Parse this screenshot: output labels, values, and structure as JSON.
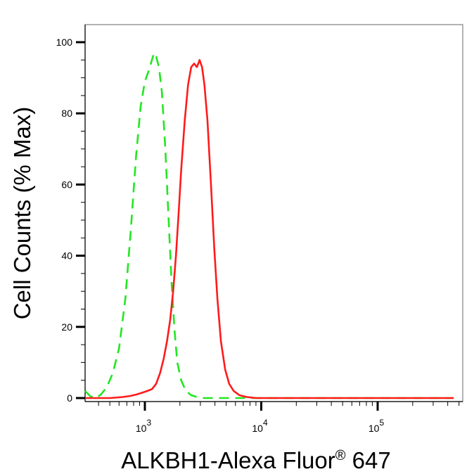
{
  "chart_data": {
    "type": "line",
    "title": "",
    "xlabel": "ALKBH1-Alexa Fluor",
    "xlabel_superscript": "®",
    "xlabel_suffix": " 647",
    "ylabel": "Cell Counts (% Max)",
    "x_scale": "log",
    "xlim": [
      300,
      450000
    ],
    "ylim": [
      0,
      105
    ],
    "y_ticks": [
      0,
      20,
      40,
      60,
      80,
      100
    ],
    "y_tick_labels": [
      "0",
      "20",
      "40",
      "60",
      "80",
      "100"
    ],
    "x_ticks": [
      1000,
      10000,
      100000
    ],
    "x_tick_base": "10",
    "x_tick_exponents": [
      "3",
      "4",
      "5"
    ],
    "grid": false,
    "colors": {
      "control": "#22e622",
      "sample": "#ff1a1a",
      "frame": "#808080"
    },
    "series": [
      {
        "style": "dashed",
        "color": "#22e622",
        "x": [
          300,
          340,
          380,
          420,
          470,
          530,
          600,
          680,
          760,
          840,
          920,
          1000,
          1080,
          1150,
          1200,
          1250,
          1320,
          1400,
          1500,
          1600,
          1700,
          1800,
          1900,
          2050,
          2250,
          2500,
          2800,
          3200,
          4000,
          6000,
          10000,
          30000,
          100000,
          450000
        ],
        "y": [
          2,
          0.5,
          0,
          1,
          3,
          7,
          14,
          28,
          48,
          68,
          82,
          89,
          92,
          95,
          97,
          96,
          93,
          86,
          70,
          50,
          32,
          19,
          10,
          5,
          2,
          0.8,
          0.3,
          0,
          0,
          0,
          0,
          0,
          0,
          0
        ]
      },
      {
        "style": "solid",
        "color": "#ff1a1a",
        "x": [
          300,
          500,
          650,
          750,
          850,
          950,
          1050,
          1150,
          1250,
          1350,
          1450,
          1550,
          1650,
          1750,
          1850,
          1950,
          2050,
          2200,
          2350,
          2500,
          2650,
          2800,
          2950,
          3100,
          3250,
          3450,
          3700,
          3950,
          4200,
          4500,
          4900,
          5300,
          5800,
          6500,
          7500,
          9000,
          15000,
          50000,
          450000
        ],
        "y": [
          0,
          0,
          0.3,
          0.6,
          1,
          1.5,
          2,
          2.5,
          4,
          7,
          11,
          16,
          22,
          30,
          40,
          52,
          64,
          78,
          88,
          93,
          94,
          93,
          95,
          93,
          88,
          78,
          60,
          42,
          28,
          16,
          8,
          4,
          2,
          0.8,
          0.3,
          0,
          0,
          0,
          0
        ]
      }
    ]
  }
}
